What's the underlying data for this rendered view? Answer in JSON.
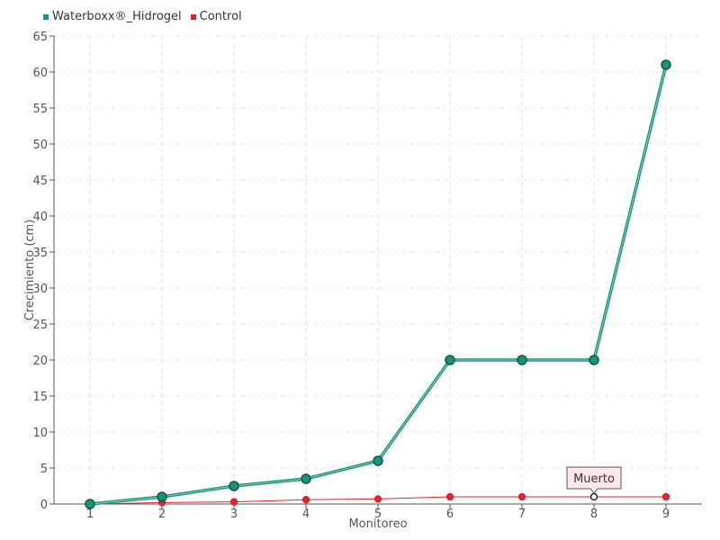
{
  "chart_data": {
    "type": "line",
    "x": [
      "1",
      "2",
      "3",
      "4",
      "5",
      "6",
      "7",
      "8",
      "9"
    ],
    "xlabel": "Monitoreo",
    "ylabel": "Crecimiento (cm)",
    "ylim": [
      0,
      65
    ],
    "yticks": [
      0,
      5,
      10,
      15,
      20,
      25,
      30,
      35,
      40,
      45,
      50,
      55,
      60,
      65
    ],
    "grid": true,
    "legend_position": "top-left",
    "series": [
      {
        "name": "Waterboxx®_Hidrogel",
        "color": "#1a9479",
        "values": [
          0,
          1,
          2.5,
          3.5,
          6,
          20,
          20,
          20,
          61
        ]
      },
      {
        "name": "Control",
        "color": "#e0242b",
        "values": [
          0,
          0.2,
          0.3,
          0.6,
          0.7,
          1,
          1,
          1,
          1
        ]
      }
    ],
    "annotations": [
      {
        "series": 1,
        "index": 7,
        "text": "Muerto"
      }
    ]
  }
}
